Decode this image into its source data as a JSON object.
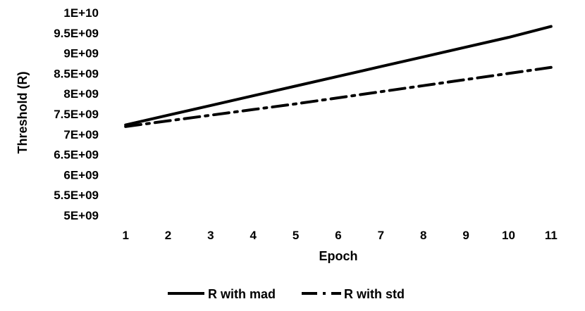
{
  "chart_data": {
    "type": "line",
    "title": "",
    "xlabel": "Epoch",
    "ylabel": "Threshold (R)",
    "x": [
      1,
      2,
      3,
      4,
      5,
      6,
      7,
      8,
      9,
      10,
      11
    ],
    "xtick_labels": [
      "1",
      "2",
      "3",
      "4",
      "5",
      "6",
      "7",
      "8",
      "9",
      "10",
      "11"
    ],
    "ylim": [
      5000000000,
      10000000000
    ],
    "ytick_labels": [
      "5E+09",
      "5.5E+09",
      "6E+09",
      "6.5E+09",
      "7E+09",
      "7.5E+09",
      "8E+09",
      "8.5E+09",
      "9E+09",
      "9.5E+09",
      "1E+10"
    ],
    "ytick_values": [
      5000000000,
      5500000000,
      6000000000,
      6500000000,
      7000000000,
      7500000000,
      8000000000,
      8500000000,
      9000000000,
      9500000000,
      10000000000
    ],
    "grid": false,
    "legend_position": "bottom",
    "series": [
      {
        "name": "R with mad",
        "style": "solid",
        "color": "#000000",
        "values": [
          7230000000,
          7470000000,
          7710000000,
          7950000000,
          8190000000,
          8430000000,
          8670000000,
          8910000000,
          9150000000,
          9390000000,
          9660000000
        ]
      },
      {
        "name": "R with std",
        "style": "dash-dot",
        "color": "#000000",
        "values": [
          7190000000,
          7330000000,
          7470000000,
          7610000000,
          7750000000,
          7900000000,
          8050000000,
          8200000000,
          8350000000,
          8500000000,
          8650000000
        ]
      }
    ]
  }
}
